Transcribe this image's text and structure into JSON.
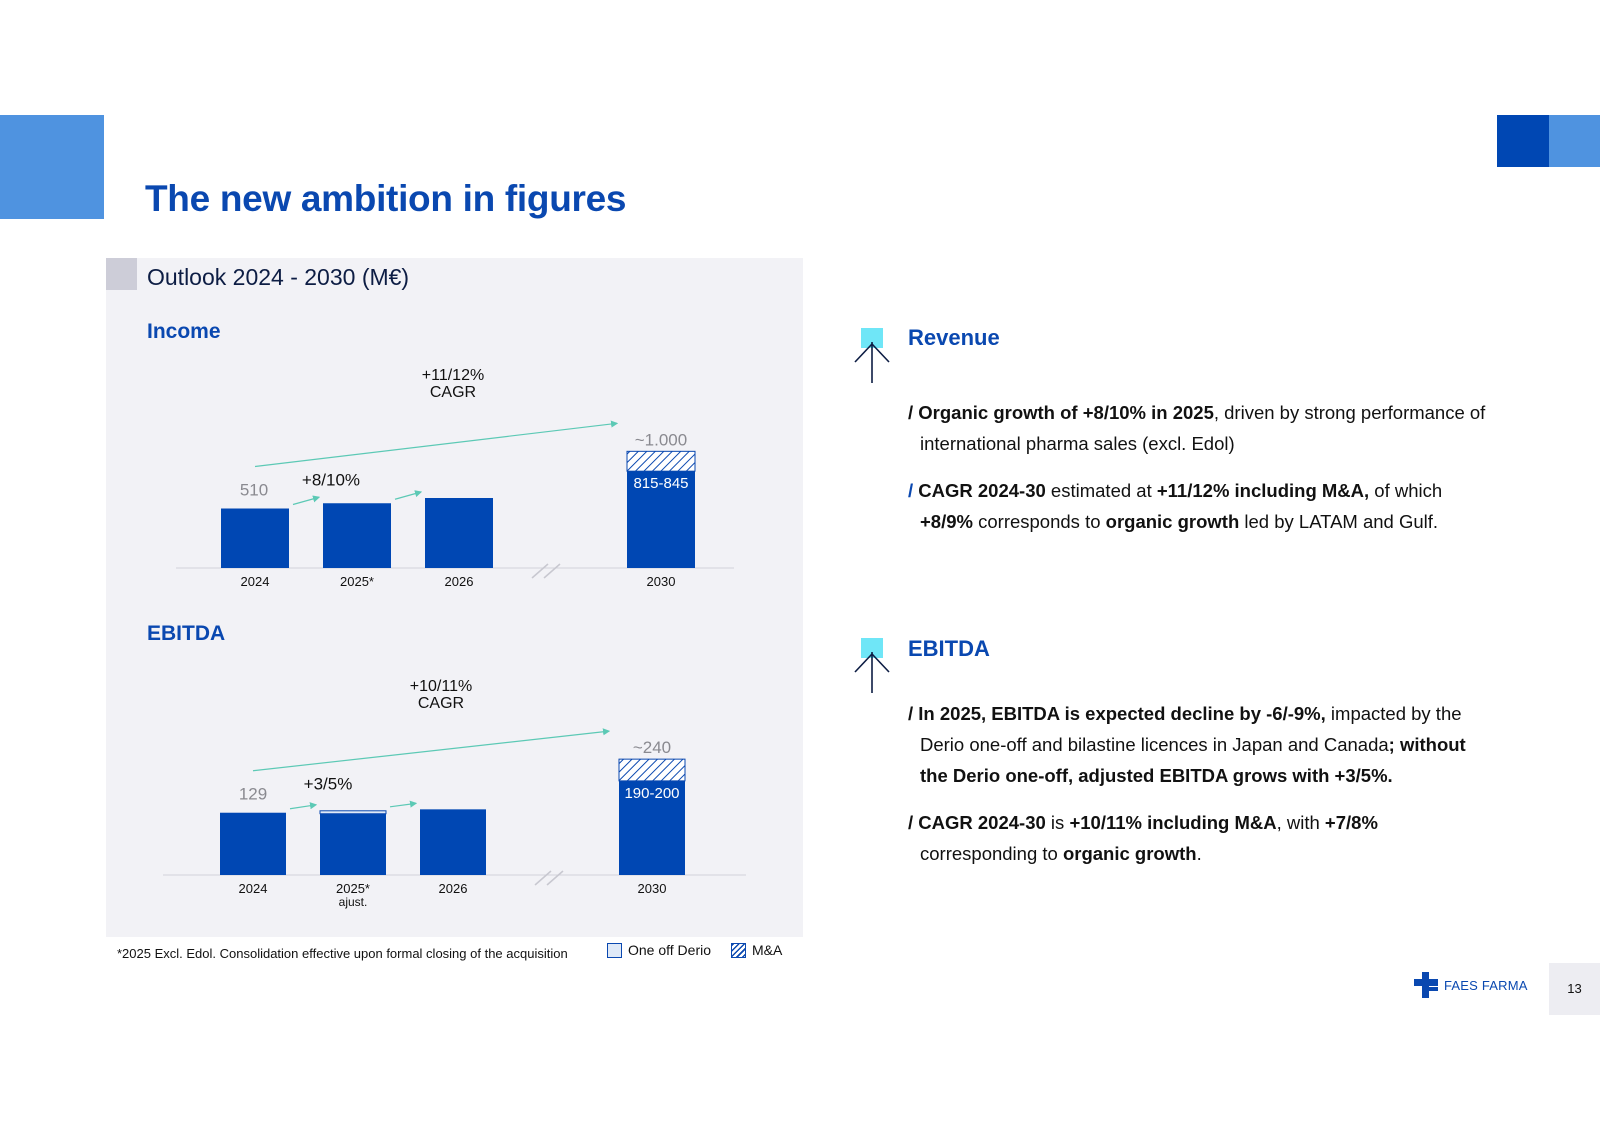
{
  "title": "The new ambition in figures",
  "panel": {
    "title": "Outlook 2024 - 2030 (M€)",
    "footnote": "*2025 Excl. Edol. Consolidation effective upon formal closing of the acquisition",
    "legend": {
      "oneoff": "One off Derio",
      "ma": "M&A"
    }
  },
  "colors": {
    "bar": "#0047b3",
    "accent": "#0a48b0",
    "light": "#4f93e0",
    "arrow": "#5cc9b5",
    "icon_flag": "#6fe6f7"
  },
  "chart_data": [
    {
      "type": "bar",
      "title": "Income",
      "categories": [
        "2024",
        "2025*",
        "2026",
        "2030"
      ],
      "values": [
        510,
        555,
        600,
        830
      ],
      "totals_labels": {
        "2024": "510",
        "2030": "~1.000"
      },
      "bar_labels": {
        "2030": "815-845"
      },
      "ma_top": {
        "2030": 1000
      },
      "growth_label": "+8/10%",
      "cagr_label": [
        "+11/12%",
        "CAGR"
      ],
      "axis_break_between": [
        "2026",
        "2030"
      ],
      "ylim": [
        0,
        1200
      ]
    },
    {
      "type": "bar",
      "title": "EBITDA",
      "categories": [
        "2024",
        "2025*",
        "2026",
        "2030"
      ],
      "category_sublabels": {
        "2025*": "ajust."
      },
      "values": [
        129,
        129,
        136,
        195
      ],
      "oneoff_top": {
        "2025*": 133
      },
      "totals_labels": {
        "2024": "129",
        "2030": "~240"
      },
      "bar_labels": {
        "2030": "190-200"
      },
      "ma_top": {
        "2030": 240
      },
      "growth_label": "+3/5%",
      "cagr_label": [
        "+10/11%",
        "CAGR"
      ],
      "axis_break_between": [
        "2026",
        "2030"
      ],
      "ylim": [
        0,
        290
      ]
    }
  ],
  "right": {
    "revenue": {
      "title": "Revenue",
      "bullets": [
        [
          {
            "t": "/ ",
            "b": true
          },
          {
            "t": "Organic growth of +8/10% in 2025",
            "b": true
          },
          {
            "t": ", driven by strong performance of international pharma sales (excl. Edol)",
            "b": false
          }
        ],
        [
          {
            "t": "/ ",
            "b": true,
            "blue": true
          },
          {
            "t": "CAGR 2024-30",
            "b": true
          },
          {
            "t": " estimated at ",
            "b": false
          },
          {
            "t": "+11/12% including M&A,",
            "b": true
          },
          {
            "t": " of which ",
            "b": false
          },
          {
            "t": "+8/9%",
            "b": true
          },
          {
            "t": " corresponds to ",
            "b": false
          },
          {
            "t": "organic growth",
            "b": true
          },
          {
            "t": " led by LATAM and Gulf.",
            "b": false
          }
        ]
      ]
    },
    "ebitda": {
      "title": "EBITDA",
      "bullets": [
        [
          {
            "t": "/ ",
            "b": true
          },
          {
            "t": "In 2025, EBITDA is expected decline by -6/-9%,",
            "b": true
          },
          {
            "t": " impacted by the Derio one-off and bilastine licences in Japan and Canada",
            "b": false
          },
          {
            "t": "; without the Derio one-off, adjusted EBITDA grows with +3/5%.",
            "b": true
          }
        ],
        [
          {
            "t": "/ ",
            "b": true
          },
          {
            "t": "CAGR 2024-30",
            "b": true
          },
          {
            "t": " is ",
            "b": false
          },
          {
            "t": "+10/11% including M&A",
            "b": true
          },
          {
            "t": ", with ",
            "b": false
          },
          {
            "t": "+7/8%",
            "b": true
          },
          {
            "t": " corresponding to ",
            "b": false
          },
          {
            "t": "organic growth",
            "b": true
          },
          {
            "t": ".",
            "b": false
          }
        ]
      ]
    }
  },
  "footer": {
    "logo_text": "FAES FARMA",
    "page_number": "13"
  }
}
